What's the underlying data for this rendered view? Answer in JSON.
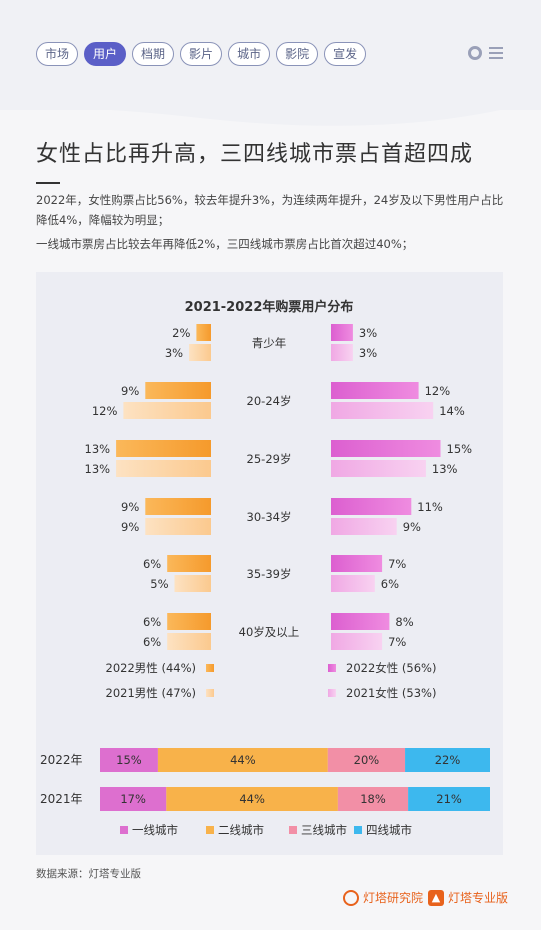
{
  "nav": {
    "tabs": [
      "市场",
      "用户",
      "档期",
      "影片",
      "城市",
      "影院",
      "宣发"
    ],
    "active_index": 1
  },
  "header": {
    "title": "女性占比再升高，三四线城市票占首超四成"
  },
  "paragraphs": [
    "2022年，女性购票占比56%，较去年提升3%，为连续两年提升，24岁及以下男性用户占比降低4%，降幅较为明显；",
    "一线城市票房占比较去年再降低2%，三四线城市票房占比首次超过40%；"
  ],
  "chart_data": [
    {
      "type": "bar",
      "orientation": "horizontal-butterfly",
      "title": "2021-2022年购票用户分布",
      "categories": [
        "青少年",
        "20-24岁",
        "25-29岁",
        "30-34岁",
        "35-39岁",
        "40岁及以上"
      ],
      "series": [
        {
          "name": "2022男性 (44%)",
          "side": "left",
          "color": "#f7a43a",
          "values": [
            2,
            9,
            13,
            9,
            6,
            6
          ]
        },
        {
          "name": "2021男性 (47%)",
          "side": "left",
          "color": "#fbd0a0",
          "values": [
            3,
            12,
            13,
            9,
            5,
            6
          ]
        },
        {
          "name": "2022女性 (56%)",
          "side": "right",
          "color": "#e36bd0",
          "values": [
            3,
            12,
            15,
            11,
            7,
            8
          ]
        },
        {
          "name": "2021女性 (53%)",
          "side": "right",
          "color": "#f2b6e6",
          "values": [
            3,
            14,
            13,
            9,
            6,
            7
          ]
        }
      ],
      "value_suffix": "%",
      "legend_position": "bottom"
    },
    {
      "type": "bar",
      "orientation": "horizontal-stacked-100",
      "categories": [
        "2022年",
        "2021年"
      ],
      "series": [
        {
          "name": "一线城市",
          "color": "#dd6fcf",
          "values": [
            15,
            17
          ]
        },
        {
          "name": "二线城市",
          "color": "#f8b24a",
          "values": [
            44,
            44
          ]
        },
        {
          "name": "三线城市",
          "color": "#f28fa6",
          "values": [
            20,
            18
          ]
        },
        {
          "name": "四线城市",
          "color": "#3db8ee",
          "values": [
            22,
            21
          ]
        }
      ],
      "value_suffix": "%",
      "legend_position": "bottom"
    }
  ],
  "footer": {
    "source": "数据来源：灯塔专业版",
    "brand_research": "灯塔研究院",
    "brand_pro": "灯塔专业版"
  },
  "icons": {
    "gear": "gear-icon",
    "menu": "menu-icon"
  }
}
